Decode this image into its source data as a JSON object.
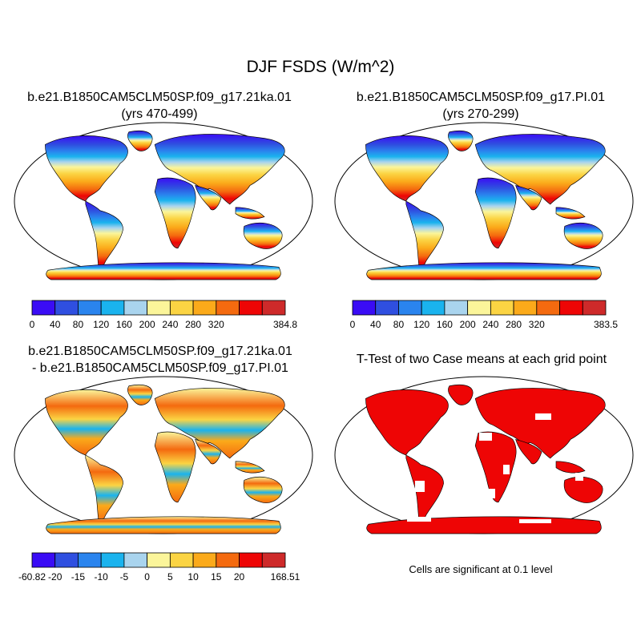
{
  "title": "DJF FSDS (W/m^2)",
  "panels": {
    "p1": {
      "line1": "b.e21.B1850CAM5CLM50SP.f09_g17.21ka.01",
      "line2": "(yrs 470-499)"
    },
    "p2": {
      "line1": "b.e21.B1850CAM5CLM50SP.f09_g17.PI.01",
      "line2": "(yrs 270-299)"
    },
    "p3": {
      "line1": "b.e21.B1850CAM5CLM50SP.f09_g17.21ka.01",
      "line2": "- b.e21.B1850CAM5CLM50SP.f09_g17.PI.01"
    },
    "p4": {
      "line1": "T-Test of two Case means at each grid point"
    }
  },
  "significance_note": "Cells are significant at 0.1 level",
  "colorbars": {
    "cb1": {
      "colors": [
        "#3a0cf5",
        "#2f4fe0",
        "#2a84ee",
        "#1ab3ee",
        "#a9d4ee",
        "#fbf59a",
        "#fbd443",
        "#fbaa1a",
        "#f46a0f",
        "#ee0505",
        "#ce2a2a"
      ],
      "labels": [
        "0",
        "40",
        "80",
        "120",
        "160",
        "200",
        "240",
        "280",
        "320",
        "384.8"
      ]
    },
    "cb2": {
      "colors": [
        "#3a0cf5",
        "#2f4fe0",
        "#2a84ee",
        "#1ab3ee",
        "#a9d4ee",
        "#fbf59a",
        "#fbd443",
        "#fbaa1a",
        "#f46a0f",
        "#ee0505",
        "#ce2a2a"
      ],
      "labels": [
        "0",
        "40",
        "80",
        "120",
        "160",
        "200",
        "240",
        "280",
        "320",
        "383.5"
      ]
    },
    "cb3": {
      "colors": [
        "#3a0cf5",
        "#2f4fe0",
        "#2a84ee",
        "#1ab3ee",
        "#a9d4ee",
        "#fbf59a",
        "#fbd443",
        "#fbaa1a",
        "#f46a0f",
        "#ee0505",
        "#ce2a2a"
      ],
      "labels": [
        "-60.82",
        "-20",
        "-15",
        "-10",
        "-5",
        "0",
        "5",
        "10",
        "15",
        "20",
        "168.51"
      ]
    }
  },
  "map_colors": {
    "ocean": "#ffffff",
    "coast": "#000000",
    "significant": "#ee0505"
  }
}
